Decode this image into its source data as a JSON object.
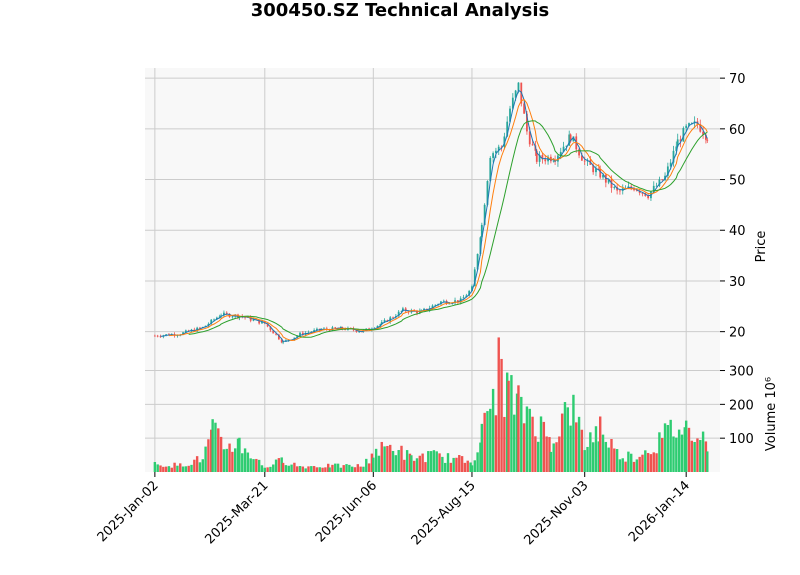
{
  "chart_data": {
    "type": "candlestick",
    "title": "300450.SZ Technical Analysis",
    "price_panel": {
      "ylabel": "Price",
      "ylim": [
        15,
        72
      ],
      "yticks": [
        20,
        30,
        40,
        50,
        60,
        70
      ],
      "moving_averages": [
        {
          "color": "#1f77b4"
        },
        {
          "color": "#ff7f0e"
        },
        {
          "color": "#2ca02c"
        }
      ],
      "candles": [
        {
          "x": "2025-01-02",
          "close": 19.2
        },
        {
          "x": "2025-01-20",
          "close": 19.6
        },
        {
          "x": "2025-02-05",
          "close": 20.8
        },
        {
          "x": "2025-02-18",
          "close": 23.4
        },
        {
          "x": "2025-03-03",
          "close": 23.1
        },
        {
          "x": "2025-03-21",
          "close": 21.6
        },
        {
          "x": "2025-04-03",
          "close": 17.9
        },
        {
          "x": "2025-04-15",
          "close": 19.5
        },
        {
          "x": "2025-04-30",
          "close": 20.4
        },
        {
          "x": "2025-05-15",
          "close": 20.6
        },
        {
          "x": "2025-05-30",
          "close": 20.1
        },
        {
          "x": "2025-06-12",
          "close": 21.6
        },
        {
          "x": "2025-06-27",
          "close": 24.2
        },
        {
          "x": "2025-07-10",
          "close": 23.9
        },
        {
          "x": "2025-07-24",
          "close": 25.9
        },
        {
          "x": "2025-08-07",
          "close": 26.1
        },
        {
          "x": "2025-08-15",
          "close": 28.5
        },
        {
          "x": "2025-08-22",
          "close": 41.0
        },
        {
          "x": "2025-08-28",
          "close": 55.0
        },
        {
          "x": "2025-09-05",
          "close": 56.5
        },
        {
          "x": "2025-09-11",
          "close": 64.0
        },
        {
          "x": "2025-09-17",
          "close": 68.5
        },
        {
          "x": "2025-09-23",
          "close": 59.5
        },
        {
          "x": "2025-09-30",
          "close": 54.0
        },
        {
          "x": "2025-10-13",
          "close": 54.5
        },
        {
          "x": "2025-10-24",
          "close": 58.5
        },
        {
          "x": "2025-11-03",
          "close": 53.5
        },
        {
          "x": "2025-11-14",
          "close": 51.0
        },
        {
          "x": "2025-11-26",
          "close": 47.5
        },
        {
          "x": "2025-12-08",
          "close": 48.5
        },
        {
          "x": "2025-12-18",
          "close": 47.0
        },
        {
          "x": "2025-12-30",
          "close": 50.5
        },
        {
          "x": "2026-01-08",
          "close": 57.5
        },
        {
          "x": "2026-01-14",
          "close": 60.0
        },
        {
          "x": "2026-01-22",
          "close": 61.0
        },
        {
          "x": "2026-01-29",
          "close": 58.5
        }
      ]
    },
    "volume_panel": {
      "ylabel": "Volume  10⁶",
      "ylim": [
        0,
        340
      ],
      "yticks": [
        100,
        200,
        300
      ],
      "values": [
        {
          "x": "2025-01-02",
          "v": 25
        },
        {
          "x": "2025-01-20",
          "v": 22
        },
        {
          "x": "2025-02-05",
          "v": 45
        },
        {
          "x": "2025-02-12",
          "v": 130
        },
        {
          "x": "2025-02-20",
          "v": 85
        },
        {
          "x": "2025-03-03",
          "v": 95
        },
        {
          "x": "2025-03-21",
          "v": 15
        },
        {
          "x": "2025-04-03",
          "v": 40
        },
        {
          "x": "2025-04-15",
          "v": 18
        },
        {
          "x": "2025-05-06",
          "v": 20
        },
        {
          "x": "2025-05-30",
          "v": 20
        },
        {
          "x": "2025-06-06",
          "v": 65
        },
        {
          "x": "2025-06-20",
          "v": 85
        },
        {
          "x": "2025-07-03",
          "v": 45
        },
        {
          "x": "2025-07-17",
          "v": 55
        },
        {
          "x": "2025-07-31",
          "v": 45
        },
        {
          "x": "2025-08-15",
          "v": 35
        },
        {
          "x": "2025-08-22",
          "v": 120
        },
        {
          "x": "2025-08-28",
          "v": 220
        },
        {
          "x": "2025-09-03",
          "v": 330
        },
        {
          "x": "2025-09-10",
          "v": 260
        },
        {
          "x": "2025-09-17",
          "v": 210
        },
        {
          "x": "2025-09-25",
          "v": 200
        },
        {
          "x": "2025-10-10",
          "v": 100
        },
        {
          "x": "2025-10-24",
          "v": 220
        },
        {
          "x": "2025-11-03",
          "v": 90
        },
        {
          "x": "2025-11-14",
          "v": 150
        },
        {
          "x": "2025-11-26",
          "v": 60
        },
        {
          "x": "2025-12-08",
          "v": 50
        },
        {
          "x": "2025-12-22",
          "v": 85
        },
        {
          "x": "2026-01-05",
          "v": 145
        },
        {
          "x": "2026-01-14",
          "v": 140
        },
        {
          "x": "2026-01-22",
          "v": 155
        },
        {
          "x": "2026-01-29",
          "v": 90
        }
      ]
    },
    "x_axis": {
      "tick_labels": [
        "2025-Jan-02",
        "2025-Mar-21",
        "2025-Jun-06",
        "2025-Aug-15",
        "2025-Nov-03",
        "2026-Jan-14"
      ]
    },
    "colors": {
      "up": "#26a69a",
      "down": "#ef5350",
      "volume_up": "#2ecc71",
      "volume_down": "#ef5350",
      "panel_bg": "#f8f8f8",
      "grid": "#cccccc"
    },
    "grid": true
  }
}
